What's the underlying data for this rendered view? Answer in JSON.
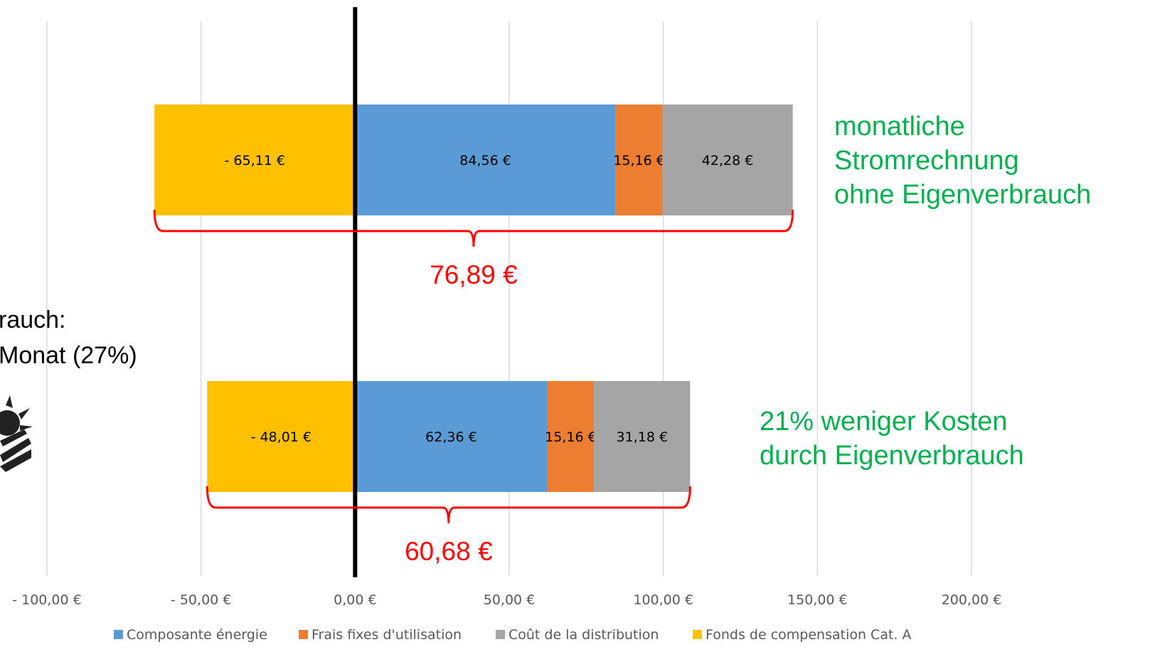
{
  "chart_data": {
    "type": "bar",
    "orientation": "horizontal",
    "stacked": true,
    "xlim": [
      -100,
      200
    ],
    "x_ticks": [
      -100,
      -50,
      0,
      50,
      100,
      150,
      200
    ],
    "x_tick_labels": [
      "- 100,00 €",
      "- 50,00 €",
      "0,00 €",
      "50,00 €",
      "100,00 €",
      "150,00 €",
      "200,00 €"
    ],
    "grid": "vertical",
    "legend_position": "bottom",
    "series": [
      {
        "name": "Composante énergie",
        "color": "#5b9bd5",
        "values": [
          84.56,
          62.36
        ],
        "labels": [
          "84,56 €",
          "62,36 €"
        ]
      },
      {
        "name": "Frais fixes d'utilisation",
        "color": "#ed7d31",
        "values": [
          15.16,
          15.16
        ],
        "labels": [
          "15,16 €",
          "15,16 €"
        ]
      },
      {
        "name": "Coût de la distribution",
        "color": "#a5a5a5",
        "values": [
          42.28,
          31.18
        ],
        "labels": [
          "42,28 €",
          "31,18 €"
        ]
      },
      {
        "name": "Fonds de compensation Cat. A",
        "color": "#ffc000",
        "values": [
          -65.11,
          -48.01
        ],
        "labels": [
          "- 65,11 €",
          "- 48,01 €"
        ]
      }
    ],
    "totals": [
      "76,89 €",
      "60,68 €"
    ],
    "annotations": {
      "top": [
        "monatliche",
        "Stromrechnung",
        "ohne Eigenverbrauch"
      ],
      "bottom": [
        "21% weniger Kosten",
        "durch Eigenverbrauch"
      ],
      "left": [
        "rauch:",
        "Monat (27%)"
      ]
    },
    "accent_colors": {
      "brace": "#ff0000",
      "annotation": "#00b050",
      "zero_line": "#000000",
      "grid": "#d9d9d9"
    }
  }
}
